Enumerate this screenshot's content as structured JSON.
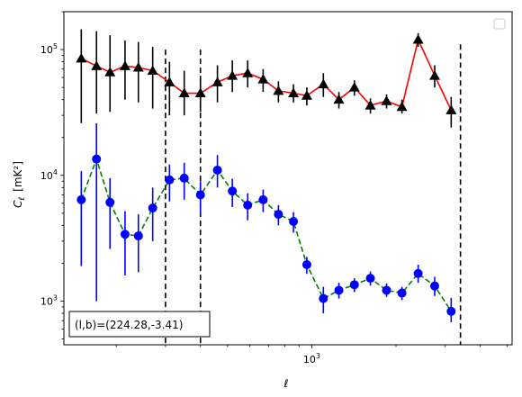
{
  "chart_data": {
    "type": "scatter",
    "title": "",
    "xlabel": "ℓ",
    "ylabel": "C",
    "ylabel_sub": "ℓ",
    "ylabel_unit": "[mK²]",
    "x_scale": "log",
    "y_scale": "log",
    "xlim": [
      130,
      5200
    ],
    "ylim": [
      450,
      200000
    ],
    "x_ticks": [
      {
        "value": 1000,
        "base": "10",
        "exp": "3"
      }
    ],
    "y_ticks": [
      {
        "value": 1000,
        "base": "10",
        "exp": "3"
      },
      {
        "value": 10000,
        "base": "10",
        "exp": "4"
      },
      {
        "value": 100000,
        "base": "10",
        "exp": "5"
      }
    ],
    "legend": {
      "position": "top-right",
      "entries": []
    },
    "annotation": {
      "text": "(l,b)=(224.28,-3.41)",
      "position": "bottom-left"
    },
    "vlines": [
      {
        "x": 300,
        "y_top": 100000,
        "style": "dashed",
        "color": "#000000"
      },
      {
        "x": 400,
        "y_top": 100000,
        "style": "dashed",
        "color": "#000000"
      },
      {
        "x": 3400,
        "y_top": 110000,
        "style": "dashed",
        "color": "#000000"
      }
    ],
    "series": [
      {
        "marker": "triangle",
        "marker_color": "#000000",
        "line_color": "#ff0000",
        "line_style": "solid",
        "error_color": "#000000",
        "points": [
          {
            "x": 150,
            "y": 85000,
            "lo": 26000,
            "hi": 145000
          },
          {
            "x": 170,
            "y": 74000,
            "lo": 31000,
            "hi": 140000
          },
          {
            "x": 190,
            "y": 66000,
            "lo": 32000,
            "hi": 130000
          },
          {
            "x": 215,
            "y": 74000,
            "lo": 40000,
            "hi": 118000
          },
          {
            "x": 240,
            "y": 72000,
            "lo": 38000,
            "hi": 115000
          },
          {
            "x": 270,
            "y": 68000,
            "lo": 34000,
            "hi": 105000
          },
          {
            "x": 310,
            "y": 55000,
            "lo": 30000,
            "hi": 80000
          },
          {
            "x": 350,
            "y": 45000,
            "lo": 30000,
            "hi": 68000
          },
          {
            "x": 400,
            "y": 45000,
            "lo": 32000,
            "hi": 62000
          },
          {
            "x": 460,
            "y": 55000,
            "lo": 38000,
            "hi": 75000
          },
          {
            "x": 520,
            "y": 62000,
            "lo": 46000,
            "hi": 82000
          },
          {
            "x": 590,
            "y": 65000,
            "lo": 50000,
            "hi": 82000
          },
          {
            "x": 670,
            "y": 58000,
            "lo": 46000,
            "hi": 70000
          },
          {
            "x": 760,
            "y": 47000,
            "lo": 38000,
            "hi": 56000
          },
          {
            "x": 860,
            "y": 45000,
            "lo": 38000,
            "hi": 53000
          },
          {
            "x": 960,
            "y": 43000,
            "lo": 36000,
            "hi": 50000
          },
          {
            "x": 1100,
            "y": 53000,
            "lo": 42000,
            "hi": 65000
          },
          {
            "x": 1250,
            "y": 40000,
            "lo": 34000,
            "hi": 46000
          },
          {
            "x": 1420,
            "y": 50000,
            "lo": 43000,
            "hi": 57000
          },
          {
            "x": 1620,
            "y": 36000,
            "lo": 31000,
            "hi": 41000
          },
          {
            "x": 1850,
            "y": 39000,
            "lo": 34000,
            "hi": 44000
          },
          {
            "x": 2100,
            "y": 35000,
            "lo": 31000,
            "hi": 40000
          },
          {
            "x": 2400,
            "y": 120000,
            "lo": 105000,
            "hi": 135000
          },
          {
            "x": 2750,
            "y": 62000,
            "lo": 50000,
            "hi": 75000
          },
          {
            "x": 3150,
            "y": 33000,
            "lo": 24000,
            "hi": 42000
          }
        ]
      },
      {
        "marker": "circle",
        "marker_color": "#0000ff",
        "line_color": "#008000",
        "line_style": "dashed",
        "error_color": "#0000ff",
        "points": [
          {
            "x": 150,
            "y": 6400,
            "lo": 1900,
            "hi": 10800
          },
          {
            "x": 170,
            "y": 13500,
            "lo": 1000,
            "hi": 26000
          },
          {
            "x": 190,
            "y": 6100,
            "lo": 2600,
            "hi": 9500
          },
          {
            "x": 215,
            "y": 3400,
            "lo": 1600,
            "hi": 5200
          },
          {
            "x": 240,
            "y": 3300,
            "lo": 1700,
            "hi": 4900
          },
          {
            "x": 270,
            "y": 5500,
            "lo": 3000,
            "hi": 8000
          },
          {
            "x": 310,
            "y": 9200,
            "lo": 6200,
            "hi": 12200
          },
          {
            "x": 350,
            "y": 9500,
            "lo": 6400,
            "hi": 12600
          },
          {
            "x": 400,
            "y": 7000,
            "lo": 5000,
            "hi": 9000
          },
          {
            "x": 460,
            "y": 11000,
            "lo": 8000,
            "hi": 14500
          },
          {
            "x": 520,
            "y": 7500,
            "lo": 5600,
            "hi": 9400
          },
          {
            "x": 590,
            "y": 5800,
            "lo": 4400,
            "hi": 7200
          },
          {
            "x": 670,
            "y": 6400,
            "lo": 5100,
            "hi": 7700
          },
          {
            "x": 760,
            "y": 4900,
            "lo": 4000,
            "hi": 5800
          },
          {
            "x": 860,
            "y": 4300,
            "lo": 3500,
            "hi": 5100
          },
          {
            "x": 960,
            "y": 1950,
            "lo": 1650,
            "hi": 2250
          },
          {
            "x": 1100,
            "y": 1050,
            "lo": 800,
            "hi": 1300
          },
          {
            "x": 1250,
            "y": 1220,
            "lo": 1050,
            "hi": 1400
          },
          {
            "x": 1420,
            "y": 1350,
            "lo": 1180,
            "hi": 1520
          },
          {
            "x": 1620,
            "y": 1520,
            "lo": 1330,
            "hi": 1720
          },
          {
            "x": 1850,
            "y": 1220,
            "lo": 1080,
            "hi": 1380
          },
          {
            "x": 2100,
            "y": 1160,
            "lo": 1020,
            "hi": 1300
          },
          {
            "x": 2400,
            "y": 1660,
            "lo": 1400,
            "hi": 1950
          },
          {
            "x": 2750,
            "y": 1320,
            "lo": 1100,
            "hi": 1560
          },
          {
            "x": 3150,
            "y": 830,
            "lo": 680,
            "hi": 1060
          }
        ]
      }
    ]
  }
}
